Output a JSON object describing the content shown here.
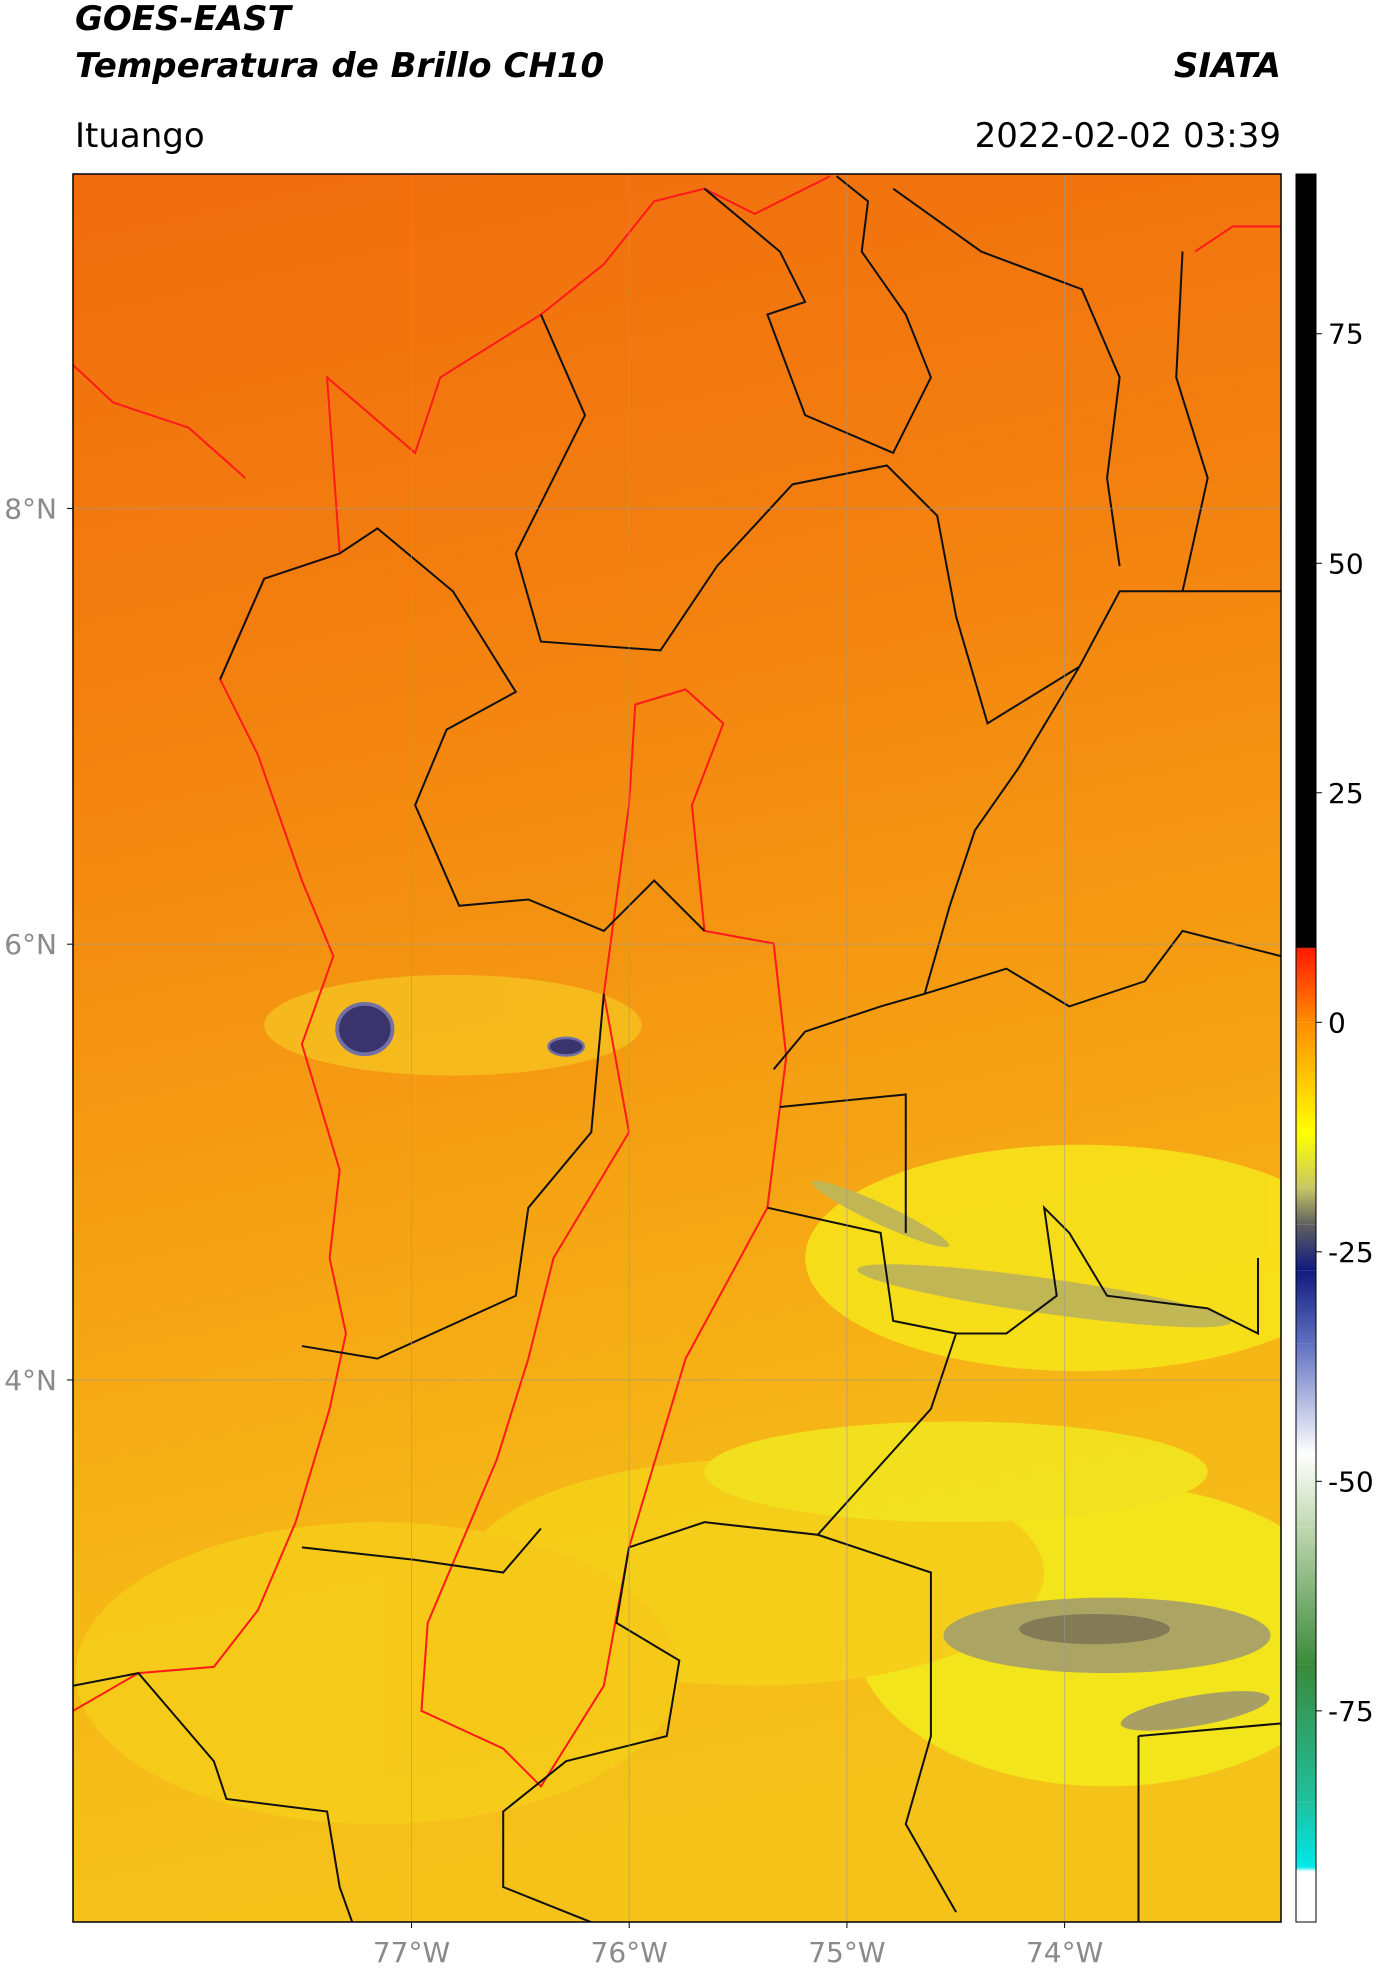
{
  "chart_data": {
    "type": "map",
    "title": "GOES-EAST",
    "subtitle": "Temperatura de Brillo CH10",
    "source": "SIATA",
    "location": "Ituango",
    "timestamp": "2022-02-02 03:39",
    "xlim": [
      -78.555,
      -73.006
    ],
    "ylim": [
      1.512,
      9.535
    ],
    "xticks": [
      {
        "value": -77,
        "label": "77°W"
      },
      {
        "value": -76,
        "label": "76°W"
      },
      {
        "value": -75,
        "label": "75°W"
      },
      {
        "value": -74,
        "label": "74°W"
      }
    ],
    "yticks": [
      {
        "value": 4,
        "label": "4°N"
      },
      {
        "value": 6,
        "label": "6°N"
      },
      {
        "value": 8,
        "label": "8°N"
      }
    ],
    "grid": true,
    "colorbar": {
      "lim": [
        -98,
        92.4
      ],
      "ticks": [
        -75,
        -50,
        -25,
        0,
        25,
        50,
        75
      ],
      "stops": [
        {
          "value": 92.4,
          "color": "#000000"
        },
        {
          "value": 8.2,
          "color": "#000000"
        },
        {
          "value": 8,
          "color": "#ff1a00"
        },
        {
          "value": 0,
          "color": "#ff8c00"
        },
        {
          "value": -12,
          "color": "#ffff00"
        },
        {
          "value": -18,
          "color": "#c8c864"
        },
        {
          "value": -22,
          "color": "#606060"
        },
        {
          "value": -27,
          "color": "#101a80"
        },
        {
          "value": -35,
          "color": "#6070c0"
        },
        {
          "value": -47,
          "color": "#ffffff"
        },
        {
          "value": -55,
          "color": "#c0d8b0"
        },
        {
          "value": -70,
          "color": "#3a8a3a"
        },
        {
          "value": -85,
          "color": "#20c0a0"
        },
        {
          "value": -92,
          "color": "#00e8e8"
        },
        {
          "value": -92.5,
          "color": "#ffffff"
        },
        {
          "value": -98,
          "color": "#ffffff"
        }
      ]
    }
  }
}
